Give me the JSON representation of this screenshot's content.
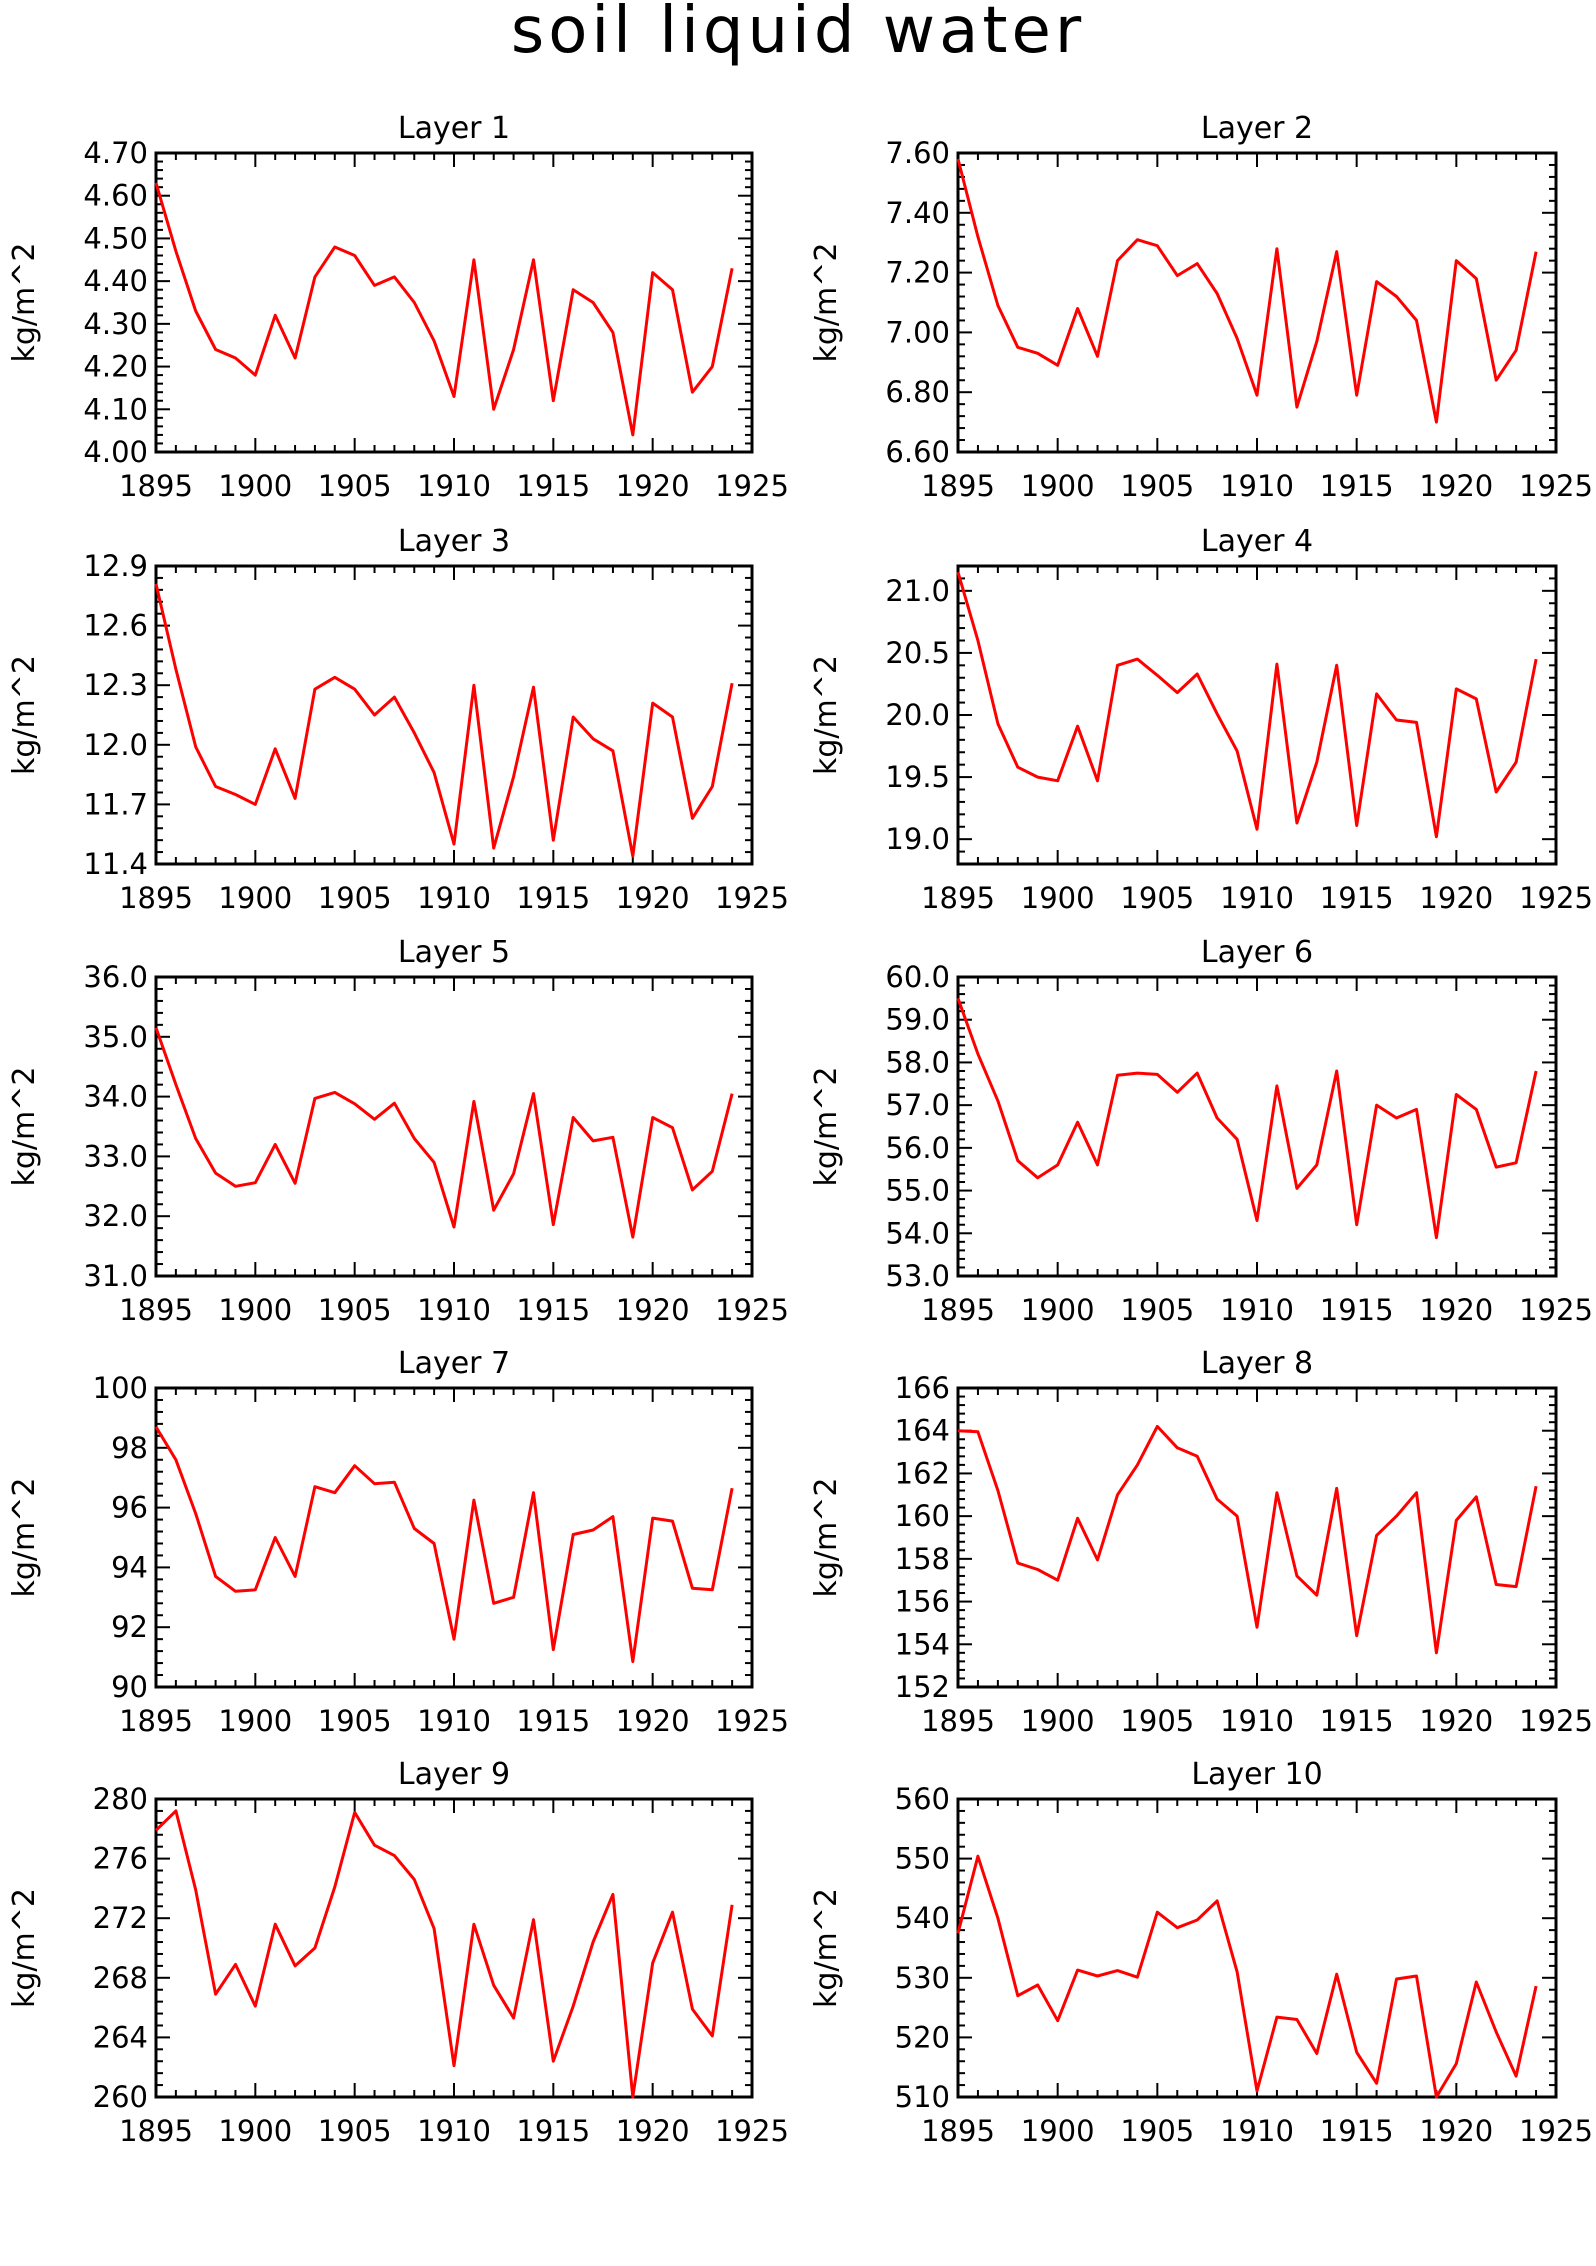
{
  "page": {
    "title": "soil liquid water"
  },
  "style": {
    "line_color": "#ff0000",
    "axis_color": "#000000",
    "background": "#ffffff"
  },
  "chart_data": [
    {
      "type": "line",
      "title": "Layer 1",
      "ylabel": "kg/m^2",
      "xlim": [
        1895,
        1925
      ],
      "ylim": [
        4.0,
        4.7
      ],
      "xticks": [
        1895,
        1900,
        1905,
        1910,
        1915,
        1920,
        1925
      ],
      "yticks": [
        "4.00",
        "4.10",
        "4.20",
        "4.30",
        "4.40",
        "4.50",
        "4.60",
        "4.70"
      ],
      "x": [
        1895,
        1896,
        1897,
        1898,
        1899,
        1900,
        1901,
        1902,
        1903,
        1904,
        1905,
        1906,
        1907,
        1908,
        1909,
        1910,
        1911,
        1912,
        1913,
        1914,
        1915,
        1916,
        1917,
        1918,
        1919,
        1920,
        1921,
        1922,
        1923,
        1924
      ],
      "values": [
        4.63,
        4.47,
        4.33,
        4.24,
        4.22,
        4.18,
        4.32,
        4.22,
        4.41,
        4.48,
        4.46,
        4.39,
        4.41,
        4.35,
        4.26,
        4.13,
        4.45,
        4.1,
        4.24,
        4.45,
        4.12,
        4.38,
        4.35,
        4.28,
        4.04,
        4.42,
        4.38,
        4.14,
        4.2,
        4.43
      ]
    },
    {
      "type": "line",
      "title": "Layer 2",
      "ylabel": "kg/m^2",
      "xlim": [
        1895,
        1925
      ],
      "ylim": [
        6.6,
        7.6
      ],
      "xticks": [
        1895,
        1900,
        1905,
        1910,
        1915,
        1920,
        1925
      ],
      "yticks": [
        "6.60",
        "6.80",
        "7.00",
        "7.20",
        "7.40",
        "7.60"
      ],
      "x": [
        1895,
        1896,
        1897,
        1898,
        1899,
        1900,
        1901,
        1902,
        1903,
        1904,
        1905,
        1906,
        1907,
        1908,
        1909,
        1910,
        1911,
        1912,
        1913,
        1914,
        1915,
        1916,
        1917,
        1918,
        1919,
        1920,
        1921,
        1922,
        1923,
        1924
      ],
      "values": [
        7.58,
        7.32,
        7.09,
        6.95,
        6.93,
        6.89,
        7.08,
        6.92,
        7.24,
        7.31,
        7.29,
        7.19,
        7.23,
        7.13,
        6.98,
        6.79,
        7.28,
        6.75,
        6.97,
        7.27,
        6.79,
        7.17,
        7.12,
        7.04,
        6.7,
        7.24,
        7.18,
        6.84,
        6.94,
        7.27
      ]
    },
    {
      "type": "line",
      "title": "Layer 3",
      "ylabel": "kg/m^2",
      "xlim": [
        1895,
        1925
      ],
      "ylim": [
        11.4,
        12.9
      ],
      "xticks": [
        1895,
        1900,
        1905,
        1910,
        1915,
        1920,
        1925
      ],
      "yticks": [
        "11.4",
        "11.7",
        "12.0",
        "12.3",
        "12.6",
        "12.9"
      ],
      "x": [
        1895,
        1896,
        1897,
        1898,
        1899,
        1900,
        1901,
        1902,
        1903,
        1904,
        1905,
        1906,
        1907,
        1908,
        1909,
        1910,
        1911,
        1912,
        1913,
        1914,
        1915,
        1916,
        1917,
        1918,
        1919,
        1920,
        1921,
        1922,
        1923,
        1924
      ],
      "values": [
        12.81,
        12.38,
        11.99,
        11.79,
        11.75,
        11.7,
        11.98,
        11.73,
        12.28,
        12.34,
        12.28,
        12.15,
        12.24,
        12.06,
        11.86,
        11.5,
        12.3,
        11.48,
        11.84,
        12.29,
        11.52,
        12.14,
        12.03,
        11.97,
        11.44,
        12.21,
        12.14,
        11.63,
        11.79,
        12.31
      ]
    },
    {
      "type": "line",
      "title": "Layer 4",
      "ylabel": "kg/m^2",
      "xlim": [
        1895,
        1925
      ],
      "ylim": [
        18.8,
        21.2
      ],
      "xticks": [
        1895,
        1900,
        1905,
        1910,
        1915,
        1920,
        1925
      ],
      "yticks": [
        "19.0",
        "19.5",
        "20.0",
        "20.5",
        "21.0"
      ],
      "x": [
        1895,
        1896,
        1897,
        1898,
        1899,
        1900,
        1901,
        1902,
        1903,
        1904,
        1905,
        1906,
        1907,
        1908,
        1909,
        1910,
        1911,
        1912,
        1913,
        1914,
        1915,
        1916,
        1917,
        1918,
        1919,
        1920,
        1921,
        1922,
        1923,
        1924
      ],
      "values": [
        21.15,
        20.6,
        19.93,
        19.58,
        19.5,
        19.47,
        19.91,
        19.47,
        20.4,
        20.45,
        20.32,
        20.18,
        20.33,
        20.01,
        19.71,
        19.08,
        20.41,
        19.13,
        19.62,
        20.4,
        19.11,
        20.17,
        19.96,
        19.94,
        19.02,
        20.21,
        20.13,
        19.38,
        19.62,
        20.45
      ]
    },
    {
      "type": "line",
      "title": "Layer 5",
      "ylabel": "kg/m^2",
      "xlim": [
        1895,
        1925
      ],
      "ylim": [
        31.0,
        36.0
      ],
      "xticks": [
        1895,
        1900,
        1905,
        1910,
        1915,
        1920,
        1925
      ],
      "yticks": [
        "31.0",
        "32.0",
        "33.0",
        "34.0",
        "35.0",
        "36.0"
      ],
      "x": [
        1895,
        1896,
        1897,
        1898,
        1899,
        1900,
        1901,
        1902,
        1903,
        1904,
        1905,
        1906,
        1907,
        1908,
        1909,
        1910,
        1911,
        1912,
        1913,
        1914,
        1915,
        1916,
        1917,
        1918,
        1919,
        1920,
        1921,
        1922,
        1923,
        1924
      ],
      "values": [
        35.15,
        34.2,
        33.3,
        32.72,
        32.5,
        32.56,
        33.2,
        32.55,
        33.97,
        34.07,
        33.88,
        33.62,
        33.89,
        33.3,
        32.9,
        31.82,
        33.92,
        32.1,
        32.71,
        34.05,
        31.86,
        33.65,
        33.26,
        33.32,
        31.65,
        33.65,
        33.48,
        32.44,
        32.75,
        34.05
      ]
    },
    {
      "type": "line",
      "title": "Layer 6",
      "ylabel": "kg/m^2",
      "xlim": [
        1895,
        1925
      ],
      "ylim": [
        53.0,
        60.0
      ],
      "xticks": [
        1895,
        1900,
        1905,
        1910,
        1915,
        1920,
        1925
      ],
      "yticks": [
        "53.0",
        "54.0",
        "55.0",
        "56.0",
        "57.0",
        "58.0",
        "59.0",
        "60.0"
      ],
      "x": [
        1895,
        1896,
        1897,
        1898,
        1899,
        1900,
        1901,
        1902,
        1903,
        1904,
        1905,
        1906,
        1907,
        1908,
        1909,
        1910,
        1911,
        1912,
        1913,
        1914,
        1915,
        1916,
        1917,
        1918,
        1919,
        1920,
        1921,
        1922,
        1923,
        1924
      ],
      "values": [
        59.5,
        58.2,
        57.1,
        55.7,
        55.3,
        55.6,
        56.6,
        55.6,
        57.7,
        57.75,
        57.72,
        57.3,
        57.75,
        56.7,
        56.2,
        54.3,
        57.45,
        55.05,
        55.6,
        57.8,
        54.2,
        57.0,
        56.7,
        56.9,
        53.9,
        57.25,
        56.9,
        55.55,
        55.65,
        57.8
      ]
    },
    {
      "type": "line",
      "title": "Layer 7",
      "ylabel": "kg/m^2",
      "xlim": [
        1895,
        1925
      ],
      "ylim": [
        90,
        100
      ],
      "xticks": [
        1895,
        1900,
        1905,
        1910,
        1915,
        1920,
        1925
      ],
      "yticks": [
        "90",
        "92",
        "94",
        "96",
        "98",
        "100"
      ],
      "x": [
        1895,
        1896,
        1897,
        1898,
        1899,
        1900,
        1901,
        1902,
        1903,
        1904,
        1905,
        1906,
        1907,
        1908,
        1909,
        1910,
        1911,
        1912,
        1913,
        1914,
        1915,
        1916,
        1917,
        1918,
        1919,
        1920,
        1921,
        1922,
        1923,
        1924
      ],
      "values": [
        98.7,
        97.6,
        95.8,
        93.7,
        93.2,
        93.25,
        95.0,
        93.7,
        96.7,
        96.5,
        97.4,
        96.8,
        96.85,
        95.3,
        94.8,
        91.6,
        96.25,
        92.8,
        93.0,
        96.5,
        91.25,
        95.1,
        95.25,
        95.7,
        90.85,
        95.65,
        95.55,
        93.3,
        93.25,
        96.65
      ]
    },
    {
      "type": "line",
      "title": "Layer 8",
      "ylabel": "kg/m^2",
      "xlim": [
        1895,
        1925
      ],
      "ylim": [
        152,
        166
      ],
      "xticks": [
        1895,
        1900,
        1905,
        1910,
        1915,
        1920,
        1925
      ],
      "yticks": [
        "152",
        "154",
        "156",
        "158",
        "160",
        "162",
        "164",
        "166"
      ],
      "x": [
        1895,
        1896,
        1897,
        1898,
        1899,
        1900,
        1901,
        1902,
        1903,
        1904,
        1905,
        1906,
        1907,
        1908,
        1909,
        1910,
        1911,
        1912,
        1913,
        1914,
        1915,
        1916,
        1917,
        1918,
        1919,
        1920,
        1921,
        1922,
        1923,
        1924
      ],
      "values": [
        164.0,
        163.95,
        161.2,
        157.8,
        157.5,
        157.0,
        159.9,
        157.95,
        161.0,
        162.4,
        164.2,
        163.2,
        162.8,
        160.8,
        160.0,
        154.8,
        161.1,
        157.2,
        156.3,
        161.3,
        154.4,
        159.1,
        160.0,
        161.1,
        153.6,
        159.8,
        160.9,
        156.8,
        156.7,
        161.4
      ]
    },
    {
      "type": "line",
      "title": "Layer 9",
      "ylabel": "kg/m^2",
      "xlim": [
        1895,
        1925
      ],
      "ylim": [
        260,
        280
      ],
      "xticks": [
        1895,
        1900,
        1905,
        1910,
        1915,
        1920,
        1925
      ],
      "yticks": [
        "260",
        "264",
        "268",
        "272",
        "276",
        "280"
      ],
      "x": [
        1895,
        1896,
        1897,
        1898,
        1899,
        1900,
        1901,
        1902,
        1903,
        1904,
        1905,
        1906,
        1907,
        1908,
        1909,
        1910,
        1911,
        1912,
        1913,
        1914,
        1915,
        1916,
        1917,
        1918,
        1919,
        1920,
        1921,
        1922,
        1923,
        1924
      ],
      "values": [
        277.9,
        279.2,
        273.9,
        266.9,
        268.9,
        266.1,
        271.6,
        268.8,
        270.0,
        274.1,
        279.1,
        276.9,
        276.2,
        274.6,
        271.3,
        262.1,
        271.6,
        267.5,
        265.3,
        271.9,
        262.4,
        266.1,
        270.4,
        273.6,
        260.0,
        269.0,
        272.4,
        265.9,
        264.1,
        272.9
      ]
    },
    {
      "type": "line",
      "title": "Layer 10",
      "ylabel": "kg/m^2",
      "xlim": [
        1895,
        1925
      ],
      "ylim": [
        510,
        560
      ],
      "xticks": [
        1895,
        1900,
        1905,
        1910,
        1915,
        1920,
        1925
      ],
      "yticks": [
        "510",
        "520",
        "530",
        "540",
        "550",
        "560"
      ],
      "x": [
        1895,
        1896,
        1897,
        1898,
        1899,
        1900,
        1901,
        1902,
        1903,
        1904,
        1905,
        1906,
        1907,
        1908,
        1909,
        1910,
        1911,
        1912,
        1913,
        1914,
        1915,
        1916,
        1917,
        1918,
        1919,
        1920,
        1921,
        1922,
        1923,
        1924
      ],
      "values": [
        537.5,
        550.4,
        540.0,
        527.0,
        528.8,
        522.8,
        531.3,
        530.3,
        531.2,
        530.1,
        541.0,
        538.4,
        539.7,
        542.9,
        531.0,
        511.0,
        523.4,
        523.0,
        517.3,
        530.6,
        517.5,
        512.3,
        529.8,
        530.3,
        510.0,
        515.6,
        529.3,
        520.9,
        513.5,
        528.6
      ]
    }
  ]
}
